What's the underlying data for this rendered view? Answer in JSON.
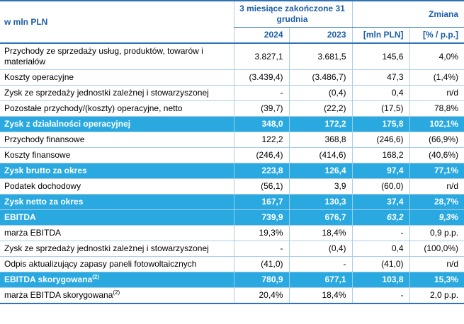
{
  "header": {
    "label": "w mln PLN",
    "period_group": "3 miesiące zakończone 31 grudnia",
    "change_group": "Zmiana",
    "col_2024": "2024",
    "col_2023": "2023",
    "col_change_abs": "[mln PLN]",
    "col_change_pct": "[% / p.p.]"
  },
  "colors": {
    "highlight_row": "#29A9E0",
    "header_text": "#1B5EA9",
    "border_dark": "#2E74B5",
    "border_light": "#A9CDEB"
  },
  "rows": [
    {
      "label": "Przychody ze sprzedaży usług, produktów, towarów i materiałów",
      "y2024": "3.827,1",
      "y2023": "3.681,5",
      "chg": "145,6",
      "pct": "4,0%"
    },
    {
      "label": "Koszty operacyjne",
      "y2024": "(3.439,4)",
      "y2023": "(3.486,7)",
      "chg": "47,3",
      "pct": "(1,4%)"
    },
    {
      "label": "Zysk ze sprzedaży jednostki zależnej i stowarzyszonej",
      "y2024": "-",
      "y2023": "(0,4)",
      "chg": "0,4",
      "pct": "n/d"
    },
    {
      "label": "Pozostałe przychody/(koszty) operacyjne, netto",
      "y2024": "(39,7)",
      "y2023": "(22,2)",
      "chg": "(17,5)",
      "pct": "78,8%"
    },
    {
      "label": "Zysk z działalności operacyjnej",
      "y2024": "348,0",
      "y2023": "172,2",
      "chg": "175,8",
      "pct": "102,1%"
    },
    {
      "label": "Przychody finansowe",
      "y2024": "122,2",
      "y2023": "368,8",
      "chg": "(246,6)",
      "pct": "(66,9%)"
    },
    {
      "label": "Koszty finansowe",
      "y2024": "(246,4)",
      "y2023": "(414,6)",
      "chg": "168,2",
      "pct": "(40,6%)"
    },
    {
      "label": "Zysk brutto za okres",
      "y2024": "223,8",
      "y2023": "126,4",
      "chg": "97,4",
      "pct": "77,1%"
    },
    {
      "label": "Podatek dochodowy",
      "y2024": "(56,1)",
      "y2023": "3,9",
      "chg": "(60,0)",
      "pct": "n/d"
    },
    {
      "label": "Zysk netto za okres",
      "y2024": "167,7",
      "y2023": "130,3",
      "chg": "37,4",
      "pct": "28,7%"
    },
    {
      "label": "EBITDA",
      "y2024": "739,9",
      "y2023": "676,7",
      "chg": "63,2",
      "pct": "9,3%"
    },
    {
      "label": "marża EBITDA",
      "y2024": "19,3%",
      "y2023": "18,4%",
      "chg": "-",
      "pct": "0,9 p.p."
    },
    {
      "label": "Zysk ze sprzedaży jednostki zależnej i stowarzyszonej",
      "y2024": "-",
      "y2023": "(0,4)",
      "chg": "0,4",
      "pct": "(100,0%)"
    },
    {
      "label": "Odpis aktualizujący zapasy paneli fotowoltaicznych",
      "y2024": "(41,0)",
      "y2023": "-",
      "chg": "(41,0)",
      "pct": "n/d"
    },
    {
      "label": "EBITDA skorygowana",
      "sup": "(2)",
      "y2024": "780,9",
      "y2023": "677,1",
      "chg": "103,8",
      "pct": "15,3%"
    },
    {
      "label": "marża EBITDA skorygowana",
      "sup": "(2)",
      "y2024": "20,4%",
      "y2023": "18,4%",
      "chg": "-",
      "pct": "2,0 p.p."
    }
  ]
}
